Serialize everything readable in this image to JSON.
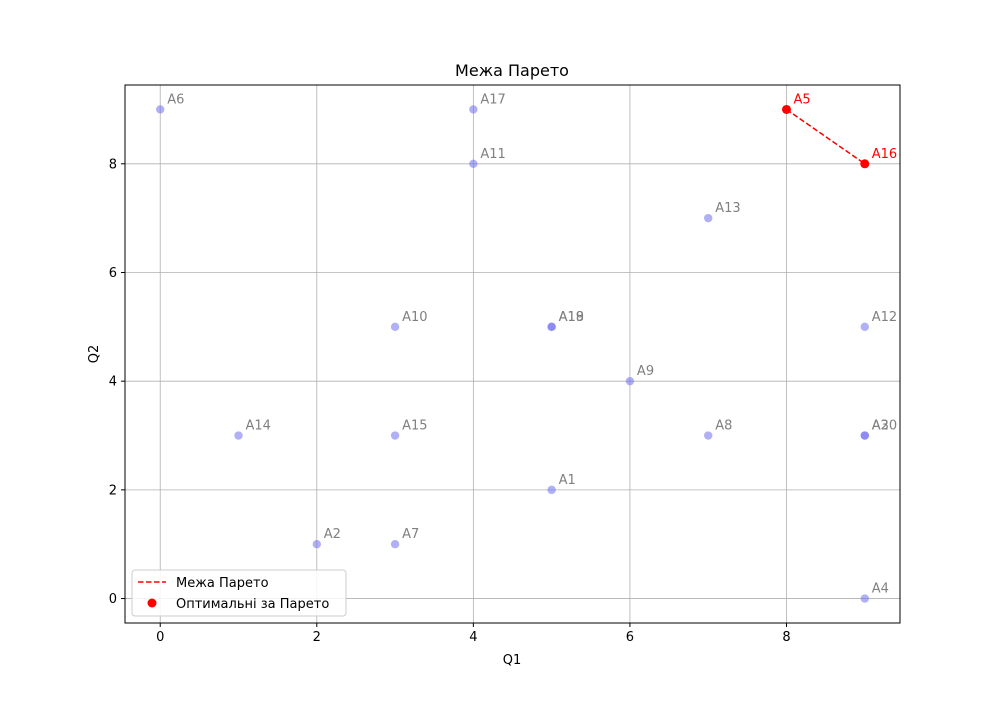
{
  "chart_data": {
    "type": "scatter",
    "title": "Межа Парето",
    "xlabel": "Q1",
    "ylabel": "Q2",
    "xlim": [
      -0.45,
      9.45
    ],
    "ylim": [
      -0.45,
      9.45
    ],
    "xticks": [
      0,
      2,
      4,
      6,
      8
    ],
    "yticks": [
      0,
      2,
      4,
      6,
      8
    ],
    "grid": true,
    "legend_position": "lower-left",
    "colors": {
      "points": "#6f6ff0",
      "pareto": "#ff0000",
      "label_muted": "#808080",
      "grid": "#b0b0b0"
    },
    "points": [
      {
        "label": "A1",
        "x": 5,
        "y": 2
      },
      {
        "label": "A2",
        "x": 2,
        "y": 1
      },
      {
        "label": "A3",
        "x": 9,
        "y": 3
      },
      {
        "label": "A4",
        "x": 9,
        "y": 0
      },
      {
        "label": "A5",
        "x": 8,
        "y": 9
      },
      {
        "label": "A6",
        "x": 0,
        "y": 9
      },
      {
        "label": "A7",
        "x": 3,
        "y": 1
      },
      {
        "label": "A8",
        "x": 7,
        "y": 3
      },
      {
        "label": "A9",
        "x": 6,
        "y": 4
      },
      {
        "label": "A10",
        "x": 3,
        "y": 5
      },
      {
        "label": "A11",
        "x": 4,
        "y": 8
      },
      {
        "label": "A12",
        "x": 9,
        "y": 5
      },
      {
        "label": "A13",
        "x": 7,
        "y": 7
      },
      {
        "label": "A14",
        "x": 1,
        "y": 3
      },
      {
        "label": "A15",
        "x": 3,
        "y": 3
      },
      {
        "label": "A16",
        "x": 9,
        "y": 8
      },
      {
        "label": "A17",
        "x": 4,
        "y": 9
      },
      {
        "label": "A18",
        "x": 5,
        "y": 5
      },
      {
        "label": "A19",
        "x": 5,
        "y": 5
      },
      {
        "label": "A20",
        "x": 9,
        "y": 3
      }
    ],
    "pareto_front": {
      "name": "Межа Парето",
      "points": [
        {
          "label": "A5",
          "x": 8,
          "y": 9
        },
        {
          "label": "A16",
          "x": 9,
          "y": 8
        }
      ]
    },
    "pareto_points_name": "Оптимальні за Парето"
  }
}
